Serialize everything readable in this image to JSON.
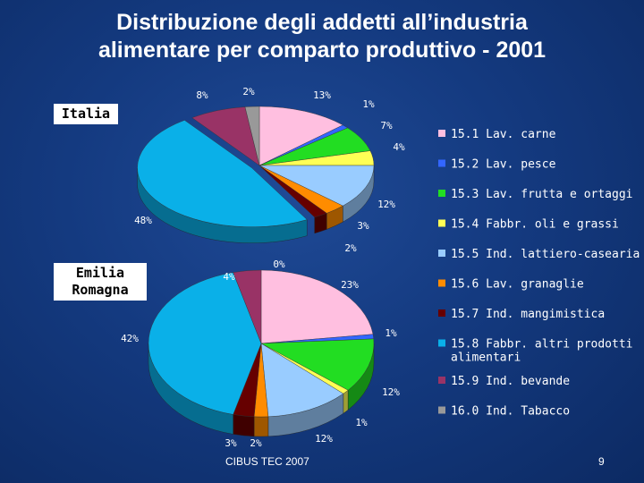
{
  "title_line1": "Distribuzione degli addetti all’industria",
  "title_line2": "alimentare per comparto produttivo - 2001",
  "footer": {
    "source": "CIBUS TEC 2007",
    "page": "9"
  },
  "chart_data": [
    {
      "type": "pie",
      "title": "Italia",
      "categories": [
        "15.1 Lav. carne",
        "15.2 Lav. pesce",
        "15.3 Lav. frutta e ortaggi",
        "15.4 Fabbr. oli e grassi",
        "15.5 Ind. lattiero-casearia",
        "15.6 Lav. granaglie",
        "15.7 Ind. mangimistica",
        "15.8 Fabbr. altri prodotti alimentari",
        "15.9 Ind. bevande",
        "16.0 Ind. Tabacco"
      ],
      "values": [
        13,
        1,
        7,
        4,
        12,
        3,
        2,
        48,
        8,
        2
      ],
      "labels": [
        "13%",
        "1%",
        "7%",
        "4%",
        "12%",
        "3%",
        "2%",
        "48%",
        "8%",
        "2%"
      ],
      "legend": "right"
    },
    {
      "type": "pie",
      "title": "Emilia Romagna",
      "categories": [
        "15.1 Lav. carne",
        "15.2 Lav. pesce",
        "15.3 Lav. frutta e ortaggi",
        "15.4 Fabbr. oli e grassi",
        "15.5 Ind. lattiero-casearia",
        "15.6 Lav. granaglie",
        "15.7 Ind. mangimistica",
        "15.8 Fabbr. altri prodotti alimentari",
        "15.9 Ind. bevande",
        "16.0 Ind. Tabacco"
      ],
      "values": [
        23,
        1,
        12,
        1,
        12,
        2,
        3,
        42,
        4,
        0
      ],
      "labels": [
        "23%",
        "1%",
        "12%",
        "1%",
        "12%",
        "2%",
        "3%",
        "42%",
        "4%",
        "0%"
      ],
      "legend": "right"
    }
  ],
  "legend_items": [
    {
      "label": "15.1 Lav. carne",
      "color": "#ffbfe0"
    },
    {
      "label": "15.2 Lav. pesce",
      "color": "#3366ff"
    },
    {
      "label": "15.3 Lav. frutta e ortaggi",
      "color": "#22dd22"
    },
    {
      "label": "15.4 Fabbr. oli e grassi",
      "color": "#ffff55"
    },
    {
      "label": "15.5 Ind. lattiero-casearia",
      "color": "#99ccff"
    },
    {
      "label": "15.6 Lav. granaglie",
      "color": "#ff8c00"
    },
    {
      "label": "15.7 Ind. mangimistica",
      "color": "#660000"
    },
    {
      "label": "15.8 Fabbr. altri prodotti",
      "label2": "alimentari",
      "color": "#0ab0e8"
    },
    {
      "label": "15.9 Ind. bevande",
      "color": "#993366"
    },
    {
      "label": "16.0 Ind. Tabacco",
      "color": "#999999"
    }
  ]
}
